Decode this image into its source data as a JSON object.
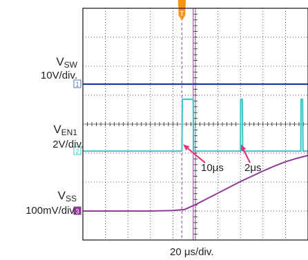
{
  "chart_data": {
    "type": "line",
    "grid": true,
    "x_divisions": 10,
    "y_divisions": 8,
    "timebase": "20 μs/div.",
    "series": [
      {
        "name": "V_SW",
        "label_main": "V",
        "label_sub": "SW",
        "scale": "10V/div.",
        "channel_marker": "1",
        "color": "#1c3f94",
        "marker_color": "#4a74c0",
        "x": [
          0,
          10
        ],
        "y": [
          5.38,
          5.38
        ]
      },
      {
        "name": "V_EN1",
        "label_main": "V",
        "label_sub": "EN1",
        "scale": "2V/div.",
        "channel_marker": "2",
        "color": "#3fc1c9",
        "marker_color": "#3fc1c9",
        "x": [
          0,
          4.4,
          4.42,
          4.9,
          4.92,
          7.0,
          7.01,
          7.08,
          7.1,
          9.68,
          9.69,
          9.76,
          9.78,
          10
        ],
        "y": [
          3.07,
          3.07,
          4.86,
          4.86,
          3.07,
          3.07,
          4.86,
          4.86,
          3.07,
          3.07,
          4.86,
          4.86,
          3.07,
          3.07
        ]
      },
      {
        "name": "V_SS",
        "label_main": "V",
        "label_sub": "SS",
        "scale": "100mV/div.",
        "channel_marker": "3",
        "color": "#8e3a96",
        "marker_color": "#8e3a96",
        "x": [
          0,
          1,
          2,
          3,
          4,
          4.5,
          5,
          5.5,
          6,
          6.5,
          7,
          7.5,
          8,
          8.5,
          9,
          9.5,
          10
        ],
        "y": [
          1.0,
          1.0,
          1.0,
          1.0,
          1.02,
          1.05,
          1.22,
          1.42,
          1.62,
          1.82,
          2.02,
          2.2,
          2.38,
          2.55,
          2.7,
          2.82,
          2.92
        ]
      }
    ],
    "trigger_marker": "T",
    "cursors": [
      {
        "x": 4.4,
        "style": "dashed",
        "color": "#b360b8"
      },
      {
        "x": 4.9,
        "style": "solid",
        "color": "#b360b8"
      }
    ],
    "annotations": [
      {
        "text": "10μs",
        "arrow_color": "#e8357a",
        "target_x": 4.45,
        "target_y": 3.3
      },
      {
        "text": "2μs",
        "arrow_color": "#e8357a",
        "target_x": 7.02,
        "target_y": 3.3
      }
    ]
  }
}
